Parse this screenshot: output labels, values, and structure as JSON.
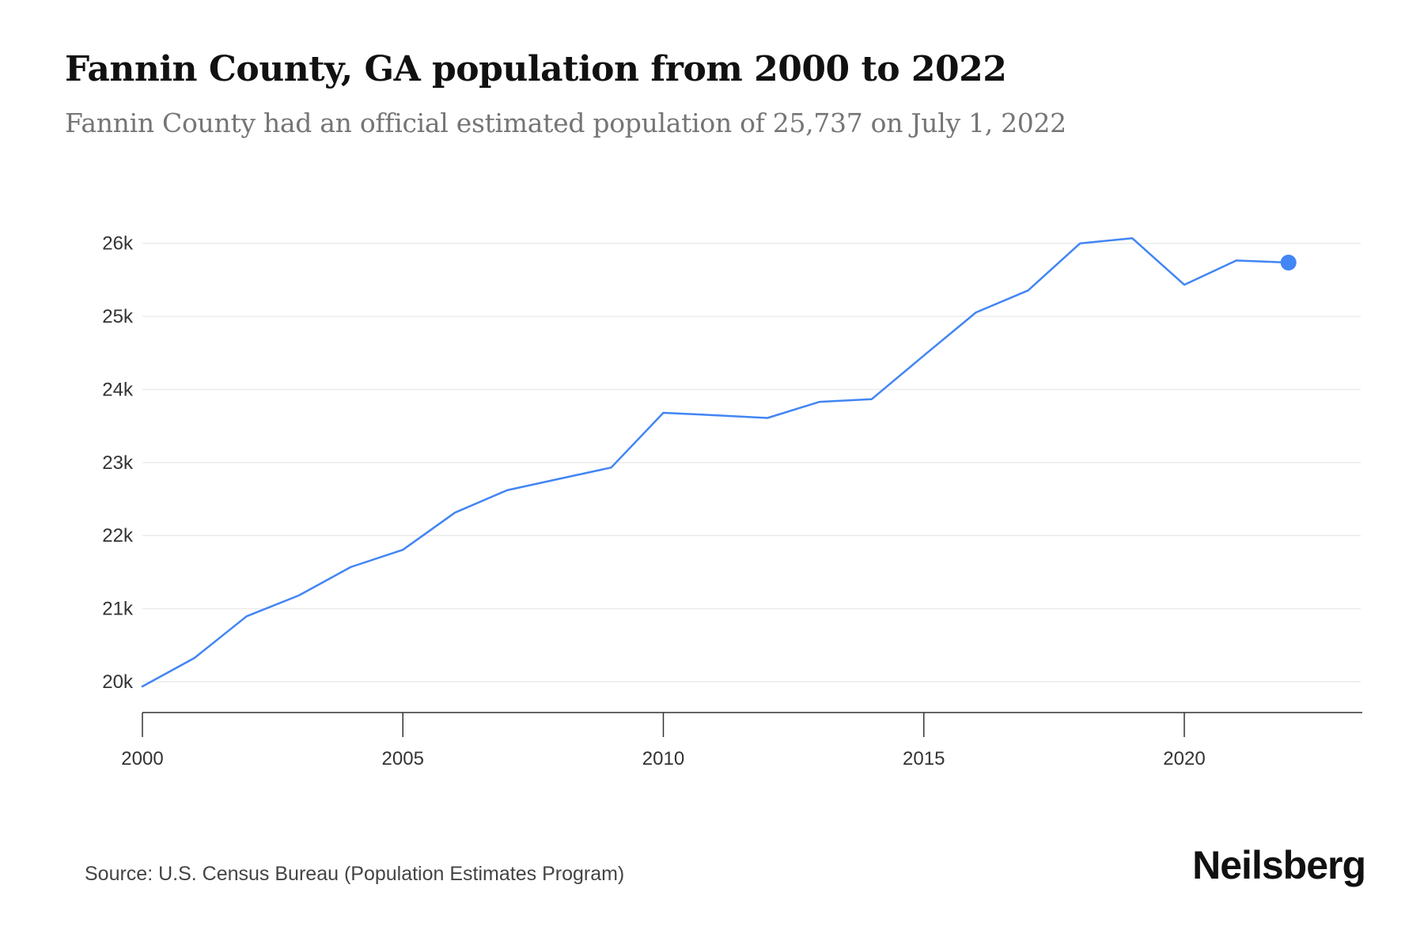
{
  "header": {
    "title": "Fannin County, GA population from 2000 to 2022",
    "subtitle": "Fannin County had an official estimated population of 25,737 on July 1, 2022"
  },
  "footer": {
    "source": "Source: U.S. Census Bureau (Population Estimates Program)",
    "brand": "Neilsberg"
  },
  "colors": {
    "line": "#4285F4",
    "marker": "#4285F4",
    "grid": "#EBEBEB",
    "axis": "#333333"
  },
  "chart_data": {
    "type": "line",
    "title": "Fannin County, GA population from 2000 to 2022",
    "subtitle": "Fannin County had an official estimated population of 25,737 on July 1, 2022",
    "xlabel": "",
    "ylabel": "",
    "x": [
      2000,
      2001,
      2002,
      2003,
      2004,
      2005,
      2006,
      2007,
      2008,
      2009,
      2010,
      2011,
      2012,
      2013,
      2014,
      2015,
      2016,
      2017,
      2018,
      2019,
      2020,
      2021,
      2022
    ],
    "series": [
      {
        "name": "Population",
        "values": [
          19935,
          20325,
          20895,
          21180,
          21570,
          21805,
          22314,
          22621,
          22776,
          22931,
          23680,
          23647,
          23610,
          23831,
          23868,
          24464,
          25054,
          25355,
          26000,
          26070,
          25433,
          25765,
          25737
        ]
      }
    ],
    "xlim": [
      2000,
      2023.4
    ],
    "ylim": [
      19600,
      26300
    ],
    "x_ticks": [
      2000,
      2005,
      2010,
      2015,
      2020
    ],
    "x_tick_labels": [
      "2000",
      "2005",
      "2010",
      "2015",
      "2020"
    ],
    "y_ticks": [
      20000,
      21000,
      22000,
      23000,
      24000,
      25000,
      26000
    ],
    "y_tick_labels": [
      "20k",
      "21k",
      "22k",
      "23k",
      "24k",
      "25k",
      "26k"
    ],
    "grid": true,
    "legend": "none",
    "highlight_last_point": true
  }
}
